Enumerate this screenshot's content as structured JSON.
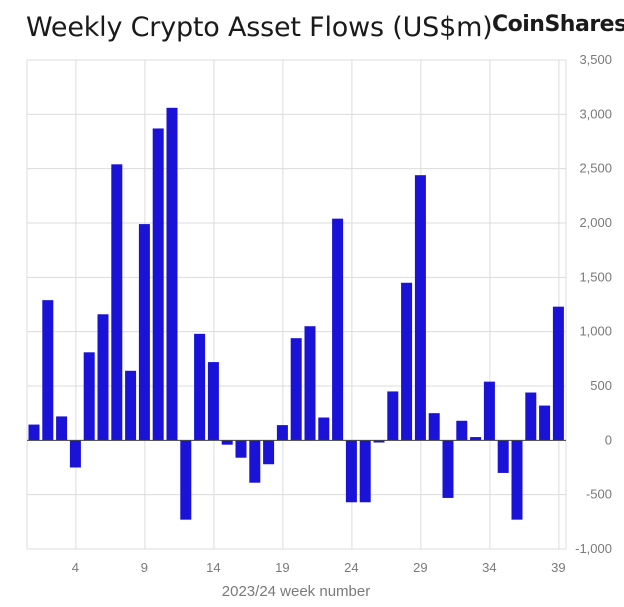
{
  "header": {
    "title": "Weekly Crypto Asset Flows (US$m)",
    "logo": "CoinShares"
  },
  "chart_data": {
    "type": "bar",
    "title": "Weekly Crypto Asset Flows (US$m)",
    "xlabel": "2023/24 week number",
    "ylabel": "",
    "ylim": [
      -1000,
      3500
    ],
    "yticks": [
      -1000,
      -500,
      0,
      500,
      1000,
      1500,
      2000,
      2500,
      3000,
      3500
    ],
    "ytick_labels": [
      "-1,000",
      "-500",
      "0",
      "500",
      "1,000",
      "1,500",
      "2,000",
      "2,500",
      "3,000",
      "3,500"
    ],
    "xtick_labels": [
      "4",
      "9",
      "14",
      "19",
      "24",
      "29",
      "34",
      "39"
    ],
    "xtick_weeks": [
      4,
      9,
      14,
      19,
      24,
      29,
      34,
      39
    ],
    "grid": true,
    "bar_color": "#1a12d6",
    "series": [
      {
        "weeks": [
          1,
          2,
          3,
          4,
          5,
          6,
          7,
          8,
          9,
          10,
          11,
          12,
          13,
          14,
          15,
          16,
          17,
          18,
          19,
          20,
          21,
          22,
          23,
          24,
          25,
          26,
          27,
          28,
          29,
          30,
          31,
          32,
          33,
          34,
          35,
          36,
          37,
          38,
          39
        ],
        "values": [
          145,
          1290,
          220,
          -250,
          810,
          1160,
          2540,
          640,
          1990,
          2870,
          3060,
          -730,
          980,
          720,
          -40,
          -160,
          -390,
          -220,
          140,
          940,
          1050,
          210,
          2040,
          -570,
          -570,
          -20,
          450,
          1450,
          2440,
          250,
          -530,
          180,
          30,
          540,
          -300,
          -730,
          440,
          320,
          1230
        ]
      }
    ]
  }
}
